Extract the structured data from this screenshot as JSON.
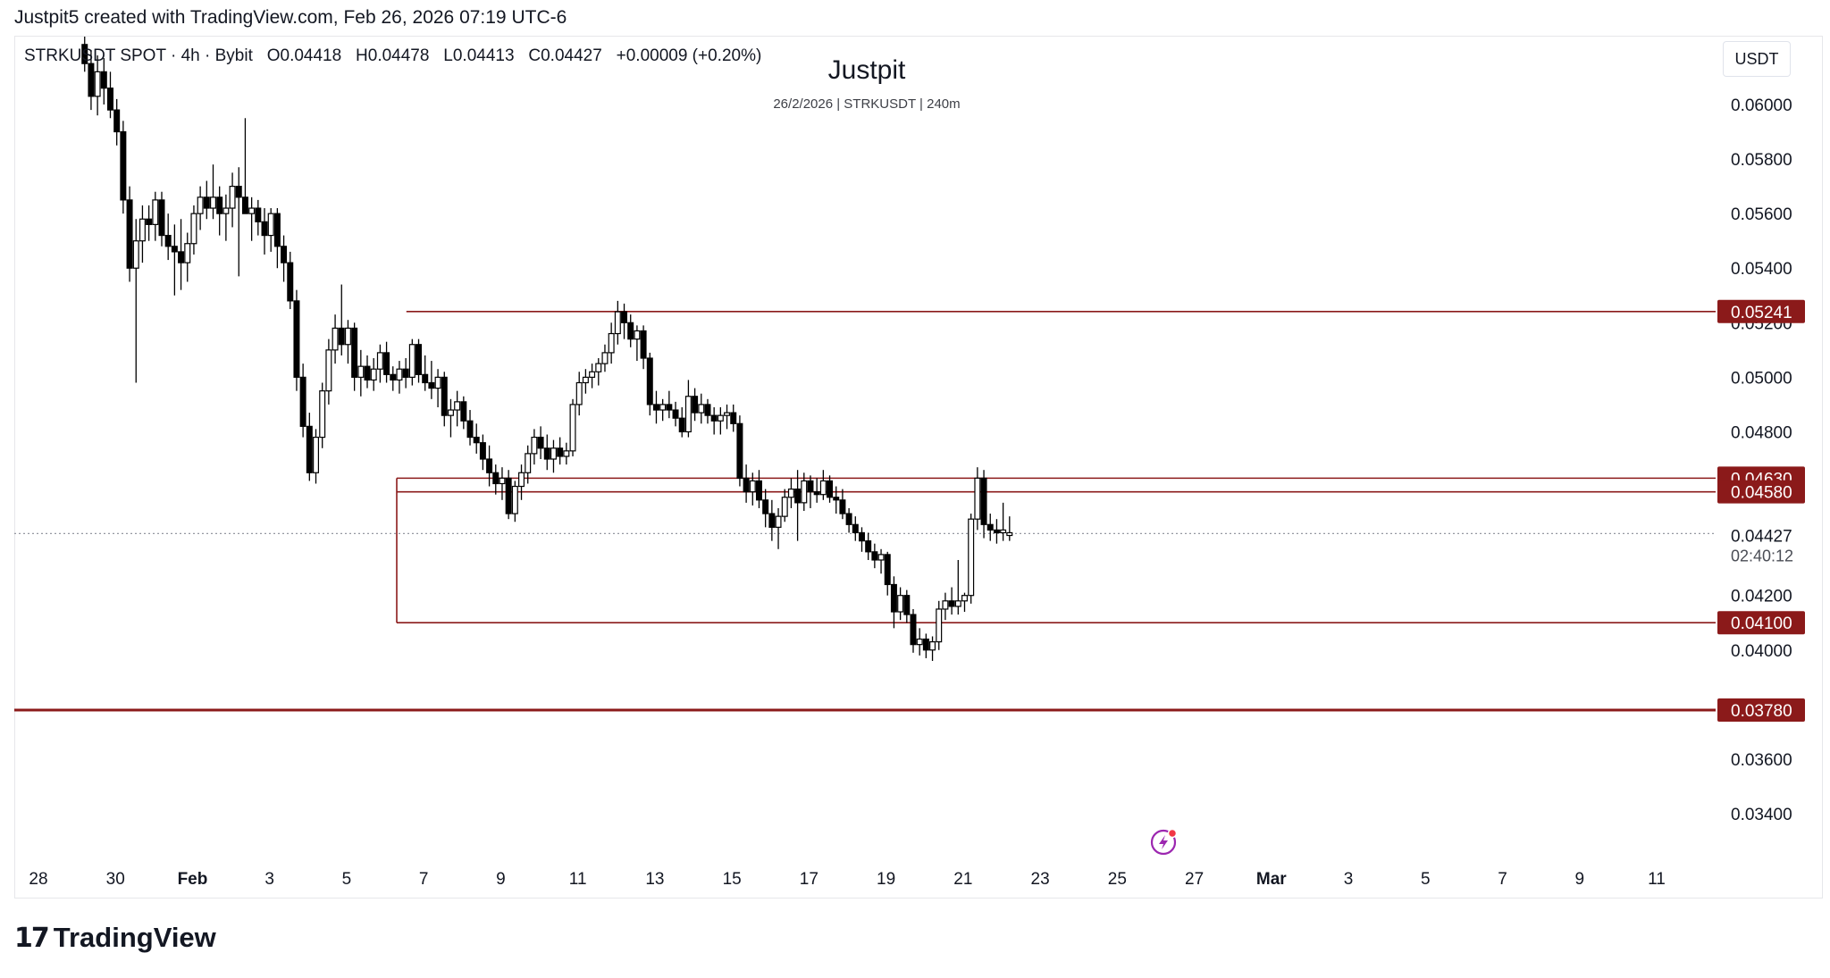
{
  "header": {
    "attribution": "Justpit5 created with TradingView.com, Feb 26, 2026 07:19 UTC-6"
  },
  "legend": {
    "symbol": "STRKUSDT SPOT · 4h · Bybit",
    "open": "O0.04418",
    "high": "H0.04478",
    "low": "L0.04413",
    "close": "C0.04427",
    "change": "+0.00009 (+0.20%)"
  },
  "currency_button": "USDT",
  "footer": {
    "brand": "TradingView"
  },
  "colors": {
    "level_line": "#8b1a1a",
    "level_label_bg": "#8b1a1a",
    "candle": "#000000",
    "price_dotted": "#9598a1",
    "flash_icon": "#9c27b0"
  },
  "icons": [
    "tradingview-logo-icon",
    "flash-icon"
  ],
  "chart_data": {
    "type": "candlestick",
    "title": "Justpit",
    "subtitle": "26/2/2026 | STRKUSDT | 240m",
    "xlabel": "",
    "ylabel": "",
    "grid": false,
    "ylim": [
      0.033,
      0.062
    ],
    "y_ticks": [
      "0.06000",
      "0.05800",
      "0.05600",
      "0.05400",
      "0.05200",
      "0.05000",
      "0.04800",
      "0.04200",
      "0.04000",
      "0.03600",
      "0.03400"
    ],
    "x_ticks": [
      {
        "label": "28",
        "day": -4
      },
      {
        "label": "30",
        "day": -2
      },
      {
        "label": "Feb",
        "day": 0
      },
      {
        "label": "3",
        "day": 2
      },
      {
        "label": "5",
        "day": 4
      },
      {
        "label": "7",
        "day": 6
      },
      {
        "label": "9",
        "day": 8
      },
      {
        "label": "11",
        "day": 10
      },
      {
        "label": "13",
        "day": 12
      },
      {
        "label": "15",
        "day": 14
      },
      {
        "label": "17",
        "day": 16
      },
      {
        "label": "19",
        "day": 18
      },
      {
        "label": "21",
        "day": 20
      },
      {
        "label": "23",
        "day": 22
      },
      {
        "label": "25",
        "day": 24
      },
      {
        "label": "27",
        "day": 26
      },
      {
        "label": "Mar",
        "day": 28
      },
      {
        "label": "3",
        "day": 30
      },
      {
        "label": "5",
        "day": 32
      },
      {
        "label": "7",
        "day": 34
      },
      {
        "label": "9",
        "day": 36
      },
      {
        "label": "11",
        "day": 38
      }
    ],
    "current_price": {
      "value": 0.04427,
      "label": "0.04427",
      "countdown": "02:40:12"
    },
    "levels": [
      {
        "value": 0.05241,
        "label": "0.05241",
        "from_day": 5.55,
        "weight": "thin"
      },
      {
        "value": 0.0463,
        "label": "0.04630",
        "from_day": 5.3,
        "weight": "thin"
      },
      {
        "value": 0.0458,
        "label": "0.04580",
        "from_day": 5.3,
        "weight": "thin"
      },
      {
        "value": 0.041,
        "label": "0.04100",
        "from_day": 5.3,
        "weight": "thin"
      },
      {
        "value": 0.0378,
        "label": "0.03780",
        "from_day": -5.0,
        "weight": "thick"
      }
    ],
    "box_left_edge": {
      "day": 5.3,
      "from_value": 0.0463,
      "to_value": 0.041
    },
    "candles_anchor": {
      "first_day": -2.8,
      "step_days": 0.1667
    },
    "candles": [
      [
        0.0622,
        0.0628,
        0.0612,
        0.0615
      ],
      [
        0.0615,
        0.062,
        0.0598,
        0.0603
      ],
      [
        0.0603,
        0.0618,
        0.0596,
        0.0612
      ],
      [
        0.0612,
        0.0617,
        0.06,
        0.0606
      ],
      [
        0.0606,
        0.0612,
        0.0595,
        0.0598
      ],
      [
        0.0598,
        0.0602,
        0.0585,
        0.059
      ],
      [
        0.059,
        0.0594,
        0.056,
        0.0565
      ],
      [
        0.0565,
        0.057,
        0.0535,
        0.054
      ],
      [
        0.054,
        0.0558,
        0.0498,
        0.055
      ],
      [
        0.055,
        0.0563,
        0.0542,
        0.0558
      ],
      [
        0.0558,
        0.0563,
        0.055,
        0.0556
      ],
      [
        0.0556,
        0.0568,
        0.055,
        0.0565
      ],
      [
        0.0565,
        0.0568,
        0.0548,
        0.0552
      ],
      [
        0.0552,
        0.056,
        0.0543,
        0.0548
      ],
      [
        0.0548,
        0.0556,
        0.053,
        0.0546
      ],
      [
        0.0546,
        0.0558,
        0.0532,
        0.0542
      ],
      [
        0.0542,
        0.0553,
        0.0535,
        0.0549
      ],
      [
        0.0549,
        0.0563,
        0.0545,
        0.056
      ],
      [
        0.056,
        0.057,
        0.0554,
        0.0566
      ],
      [
        0.0566,
        0.0572,
        0.0558,
        0.0562
      ],
      [
        0.0562,
        0.0578,
        0.0558,
        0.0566
      ],
      [
        0.0566,
        0.057,
        0.0552,
        0.056
      ],
      [
        0.056,
        0.0567,
        0.055,
        0.0562
      ],
      [
        0.0562,
        0.0575,
        0.0555,
        0.057
      ],
      [
        0.057,
        0.0577,
        0.0537,
        0.0566
      ],
      [
        0.0566,
        0.0595,
        0.056,
        0.056
      ],
      [
        0.056,
        0.0566,
        0.055,
        0.0562
      ],
      [
        0.0562,
        0.0565,
        0.0552,
        0.0557
      ],
      [
        0.0557,
        0.0562,
        0.0545,
        0.0552
      ],
      [
        0.0552,
        0.0562,
        0.0546,
        0.056
      ],
      [
        0.056,
        0.0562,
        0.054,
        0.0548
      ],
      [
        0.0548,
        0.0552,
        0.0535,
        0.0542
      ],
      [
        0.0542,
        0.0546,
        0.0525,
        0.0528
      ],
      [
        0.0528,
        0.0532,
        0.0495,
        0.05
      ],
      [
        0.05,
        0.0505,
        0.0478,
        0.0482
      ],
      [
        0.0482,
        0.0487,
        0.0462,
        0.0465
      ],
      [
        0.0465,
        0.0481,
        0.0461,
        0.0478
      ],
      [
        0.0478,
        0.0498,
        0.0474,
        0.0495
      ],
      [
        0.0495,
        0.0514,
        0.049,
        0.051
      ],
      [
        0.051,
        0.0523,
        0.0505,
        0.0518
      ],
      [
        0.0518,
        0.0534,
        0.0508,
        0.0512
      ],
      [
        0.0512,
        0.0521,
        0.0505,
        0.0518
      ],
      [
        0.0518,
        0.052,
        0.0495,
        0.05
      ],
      [
        0.05,
        0.051,
        0.0493,
        0.0504
      ],
      [
        0.0504,
        0.0508,
        0.0496,
        0.0499
      ],
      [
        0.0499,
        0.0507,
        0.0495,
        0.0503
      ],
      [
        0.0503,
        0.0512,
        0.0498,
        0.0509
      ],
      [
        0.0509,
        0.0513,
        0.0498,
        0.0501
      ],
      [
        0.0501,
        0.0504,
        0.0495,
        0.0499
      ],
      [
        0.0499,
        0.0506,
        0.0494,
        0.0503
      ],
      [
        0.0503,
        0.0507,
        0.0496,
        0.05
      ],
      [
        0.05,
        0.0514,
        0.0497,
        0.0512
      ],
      [
        0.0512,
        0.0514,
        0.0498,
        0.0501
      ],
      [
        0.0501,
        0.0508,
        0.0495,
        0.0498
      ],
      [
        0.0498,
        0.0506,
        0.0492,
        0.0496
      ],
      [
        0.0496,
        0.0503,
        0.0489,
        0.05
      ],
      [
        0.05,
        0.0502,
        0.0482,
        0.0486
      ],
      [
        0.0486,
        0.0492,
        0.0478,
        0.0488
      ],
      [
        0.0488,
        0.0495,
        0.0482,
        0.0491
      ],
      [
        0.0491,
        0.0493,
        0.0481,
        0.0484
      ],
      [
        0.0484,
        0.0488,
        0.0475,
        0.0478
      ],
      [
        0.0478,
        0.0483,
        0.0472,
        0.0476
      ],
      [
        0.0476,
        0.0479,
        0.0466,
        0.047
      ],
      [
        0.047,
        0.0475,
        0.046,
        0.0465
      ],
      [
        0.0465,
        0.0468,
        0.0457,
        0.0461
      ],
      [
        0.0461,
        0.0467,
        0.0455,
        0.0463
      ],
      [
        0.0463,
        0.0466,
        0.0448,
        0.045
      ],
      [
        0.045,
        0.0462,
        0.0447,
        0.046
      ],
      [
        0.046,
        0.0468,
        0.0455,
        0.0465
      ],
      [
        0.0465,
        0.0475,
        0.0461,
        0.0472
      ],
      [
        0.0472,
        0.0481,
        0.0468,
        0.0478
      ],
      [
        0.0478,
        0.0482,
        0.047,
        0.0474
      ],
      [
        0.0474,
        0.0479,
        0.0466,
        0.047
      ],
      [
        0.047,
        0.0477,
        0.0465,
        0.0474
      ],
      [
        0.0474,
        0.0478,
        0.0468,
        0.0471
      ],
      [
        0.0471,
        0.0476,
        0.0468,
        0.0473
      ],
      [
        0.0473,
        0.0492,
        0.0471,
        0.049
      ],
      [
        0.049,
        0.0502,
        0.0486,
        0.0498
      ],
      [
        0.0498,
        0.0503,
        0.0494,
        0.05
      ],
      [
        0.05,
        0.0505,
        0.0496,
        0.0502
      ],
      [
        0.0502,
        0.0507,
        0.0497,
        0.0505
      ],
      [
        0.0505,
        0.0512,
        0.0502,
        0.0509
      ],
      [
        0.0509,
        0.052,
        0.0505,
        0.0516
      ],
      [
        0.0516,
        0.0528,
        0.0512,
        0.0524
      ],
      [
        0.0524,
        0.0527,
        0.0514,
        0.052
      ],
      [
        0.052,
        0.0523,
        0.0511,
        0.0514
      ],
      [
        0.0514,
        0.0519,
        0.0506,
        0.0517
      ],
      [
        0.0517,
        0.0519,
        0.0503,
        0.0507
      ],
      [
        0.0507,
        0.0509,
        0.0486,
        0.049
      ],
      [
        0.049,
        0.0495,
        0.0483,
        0.0488
      ],
      [
        0.0488,
        0.0492,
        0.0484,
        0.049
      ],
      [
        0.049,
        0.0495,
        0.0485,
        0.0488
      ],
      [
        0.0488,
        0.0491,
        0.0482,
        0.0485
      ],
      [
        0.0485,
        0.0489,
        0.0478,
        0.048
      ],
      [
        0.048,
        0.0499,
        0.0478,
        0.0493
      ],
      [
        0.0493,
        0.0496,
        0.0484,
        0.0487
      ],
      [
        0.0487,
        0.0494,
        0.0483,
        0.049
      ],
      [
        0.049,
        0.0492,
        0.0483,
        0.0486
      ],
      [
        0.0486,
        0.0489,
        0.0479,
        0.0484
      ],
      [
        0.0484,
        0.0489,
        0.0479,
        0.0486
      ],
      [
        0.0486,
        0.049,
        0.0481,
        0.0487
      ],
      [
        0.0487,
        0.049,
        0.048,
        0.0483
      ],
      [
        0.0483,
        0.0486,
        0.046,
        0.0463
      ],
      [
        0.0463,
        0.0468,
        0.0454,
        0.0458
      ],
      [
        0.0458,
        0.0465,
        0.0453,
        0.0462
      ],
      [
        0.0462,
        0.0466,
        0.0452,
        0.0455
      ],
      [
        0.0455,
        0.0459,
        0.0445,
        0.045
      ],
      [
        0.045,
        0.0455,
        0.044,
        0.0445
      ],
      [
        0.0445,
        0.0452,
        0.0437,
        0.0449
      ],
      [
        0.0449,
        0.0459,
        0.0447,
        0.0456
      ],
      [
        0.0456,
        0.0463,
        0.0452,
        0.0459
      ],
      [
        0.0459,
        0.0466,
        0.044,
        0.0454
      ],
      [
        0.0454,
        0.0465,
        0.0451,
        0.0462
      ],
      [
        0.0462,
        0.0464,
        0.0452,
        0.0458
      ],
      [
        0.0458,
        0.0463,
        0.0454,
        0.0457
      ],
      [
        0.0457,
        0.0466,
        0.0455,
        0.0462
      ],
      [
        0.0462,
        0.0464,
        0.0454,
        0.0456
      ],
      [
        0.0456,
        0.046,
        0.045,
        0.0455
      ],
      [
        0.0455,
        0.0459,
        0.0448,
        0.045
      ],
      [
        0.045,
        0.0452,
        0.0443,
        0.0446
      ],
      [
        0.0446,
        0.0449,
        0.044,
        0.0443
      ],
      [
        0.0443,
        0.0445,
        0.0436,
        0.044
      ],
      [
        0.044,
        0.0443,
        0.0433,
        0.0436
      ],
      [
        0.0436,
        0.0439,
        0.043,
        0.0433
      ],
      [
        0.0433,
        0.0437,
        0.0428,
        0.0435
      ],
      [
        0.0435,
        0.0436,
        0.042,
        0.0424
      ],
      [
        0.0424,
        0.0427,
        0.0408,
        0.0414
      ],
      [
        0.0414,
        0.0423,
        0.0411,
        0.042
      ],
      [
        0.042,
        0.0422,
        0.041,
        0.0413
      ],
      [
        0.0413,
        0.0415,
        0.0399,
        0.0402
      ],
      [
        0.0402,
        0.0408,
        0.0398,
        0.0404
      ],
      [
        0.0404,
        0.0406,
        0.0397,
        0.04
      ],
      [
        0.04,
        0.0405,
        0.0396,
        0.0403
      ],
      [
        0.0403,
        0.0418,
        0.04,
        0.0415
      ],
      [
        0.0415,
        0.0421,
        0.0411,
        0.0418
      ],
      [
        0.0418,
        0.0423,
        0.0413,
        0.0416
      ],
      [
        0.0416,
        0.0433,
        0.0413,
        0.0418
      ],
      [
        0.0418,
        0.0421,
        0.0414,
        0.042
      ],
      [
        0.042,
        0.045,
        0.0417,
        0.0448
      ],
      [
        0.0448,
        0.0467,
        0.0444,
        0.0463
      ],
      [
        0.0463,
        0.0466,
        0.0441,
        0.0446
      ],
      [
        0.0446,
        0.045,
        0.044,
        0.0444
      ],
      [
        0.0444,
        0.0448,
        0.0439,
        0.0443
      ],
      [
        0.0443,
        0.0454,
        0.044,
        0.0444
      ],
      [
        0.0442,
        0.0449,
        0.044,
        0.0443
      ]
    ]
  }
}
